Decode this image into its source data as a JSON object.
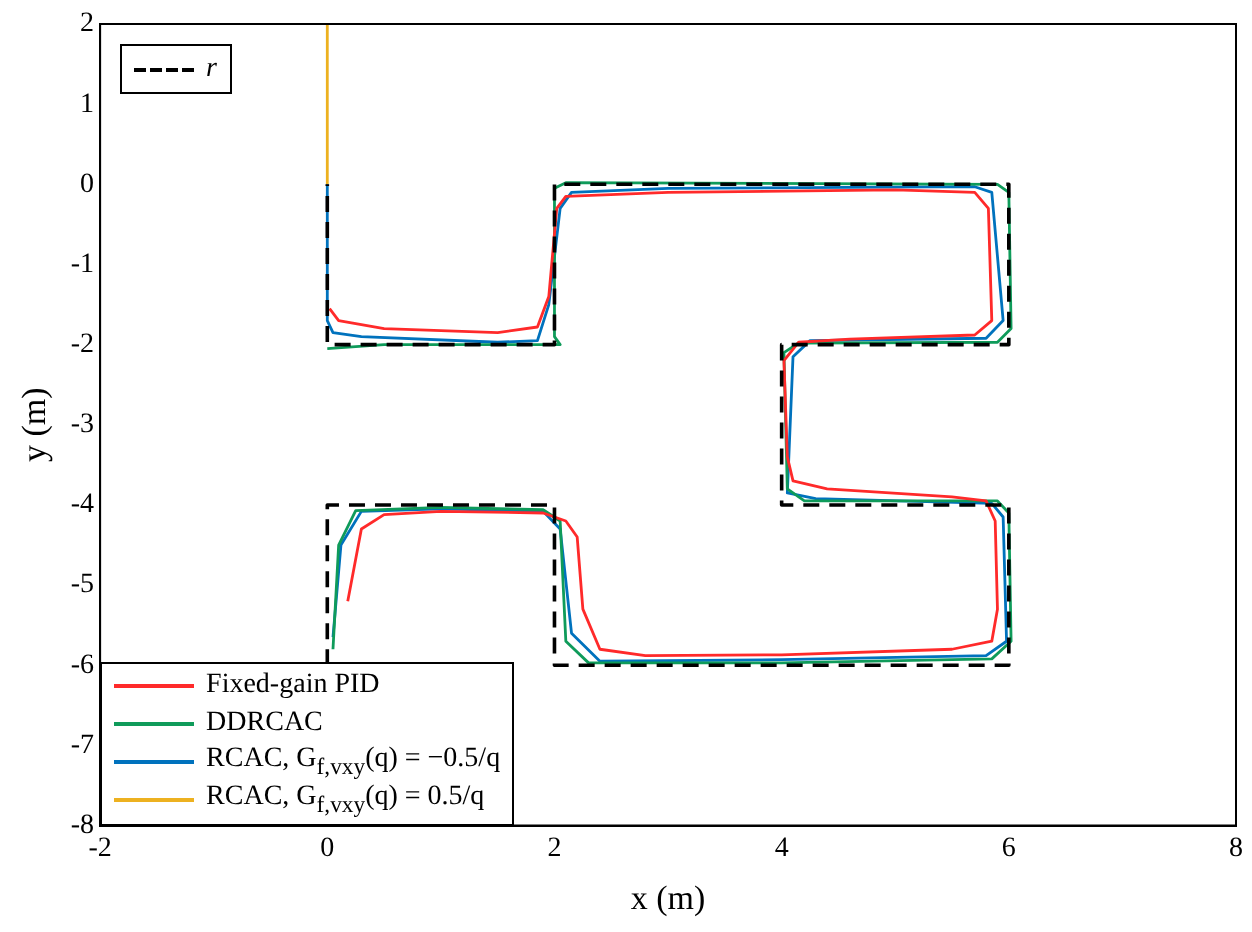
{
  "chart_data": {
    "type": "line",
    "xlabel": "x (m)",
    "ylabel": "y (m)",
    "xlim": [
      -2,
      8
    ],
    "ylim": [
      -8,
      2
    ],
    "xticks": [
      -2,
      0,
      2,
      4,
      6,
      8
    ],
    "yticks": [
      -8,
      -7,
      -6,
      -5,
      -4,
      -3,
      -2,
      -1,
      0,
      1,
      2
    ],
    "grid": false,
    "legend": "bottom left",
    "marker": "none",
    "series": [
      {
        "name": "r",
        "color": "#000000",
        "line_style": "dashed",
        "x": [
          0,
          0,
          2,
          2,
          6,
          6,
          4,
          4,
          6,
          6,
          2,
          2,
          0,
          0
        ],
        "values": [
          -6,
          -4,
          -4,
          -6,
          -6,
          -4,
          -4,
          -2,
          -2,
          0,
          0,
          -2,
          -2,
          0
        ]
      },
      {
        "name": "Fixed-gain PID",
        "color": "#ff2a2a",
        "x": [
          0.18,
          0.3,
          0.5,
          1,
          1.9,
          2.1,
          2.2,
          2.25,
          2.4,
          2.8,
          4,
          5.5,
          5.85,
          5.9,
          5.88,
          5.8,
          5.5,
          4.4,
          4.1,
          4.05,
          4.02,
          4.15,
          4.6,
          5.7,
          5.85,
          5.82,
          5.7,
          5,
          3,
          2.1,
          2.02,
          1.95,
          1.85,
          1.5,
          0.5,
          0.1,
          0.02
        ],
        "values": [
          -5.2,
          -4.3,
          -4.12,
          -4.08,
          -4.1,
          -4.2,
          -4.4,
          -5.3,
          -5.8,
          -5.88,
          -5.87,
          -5.8,
          -5.7,
          -5.3,
          -4.2,
          -3.95,
          -3.9,
          -3.8,
          -3.7,
          -3.4,
          -2.2,
          -1.97,
          -1.93,
          -1.88,
          -1.7,
          -0.3,
          -0.1,
          -0.07,
          -0.1,
          -0.15,
          -0.3,
          -1.4,
          -1.78,
          -1.85,
          -1.8,
          -1.7,
          -1.55
        ]
      },
      {
        "name": "DDRCAC",
        "color": "#0f9b5a",
        "x": [
          0.05,
          0.1,
          0.25,
          1,
          1.9,
          2.05,
          2.1,
          2.3,
          4,
          5.85,
          6.02,
          6,
          5.9,
          4.2,
          4.05,
          4.02,
          4.15,
          5.9,
          6.02,
          6,
          5.9,
          2.1,
          2,
          2,
          2.05,
          0.5,
          0
        ],
        "values": [
          -5.8,
          -4.5,
          -4.07,
          -4.03,
          -4.06,
          -4.2,
          -5.7,
          -5.97,
          -5.97,
          -5.92,
          -5.7,
          -4.1,
          -3.95,
          -3.95,
          -3.8,
          -2.1,
          -1.98,
          -1.97,
          -1.8,
          -0.1,
          0,
          0.02,
          -0.05,
          -1.9,
          -2,
          -2,
          -2.05
        ]
      },
      {
        "name": "RCAC, G$_{f,vxy}$(q) = −0.5/q",
        "color": "#0072bd",
        "x": [
          0.05,
          0.12,
          0.3,
          1,
          1.9,
          2.05,
          2.15,
          2.4,
          4,
          5.8,
          5.98,
          5.95,
          5.85,
          4.3,
          4.05,
          4.1,
          4.25,
          5.8,
          5.95,
          5.85,
          5.7,
          3,
          2.15,
          2.05,
          1.95,
          1.85,
          1.5,
          0.3,
          0.05,
          0,
          0
        ],
        "values": [
          -5.65,
          -4.5,
          -4.08,
          -4.05,
          -4.08,
          -4.3,
          -5.6,
          -5.95,
          -5.93,
          -5.88,
          -5.7,
          -4.15,
          -3.98,
          -3.92,
          -3.85,
          -2.15,
          -1.95,
          -1.92,
          -1.7,
          -0.1,
          -0.03,
          -0.05,
          -0.1,
          -0.3,
          -1.5,
          -1.95,
          -1.97,
          -1.9,
          -1.85,
          -1.7,
          0
        ]
      },
      {
        "name": "RCAC, G$_{f,vxy}$(q) = 0.5/q",
        "color": "#edb120",
        "x": [
          0,
          0
        ],
        "values": [
          0,
          2
        ]
      }
    ]
  }
}
